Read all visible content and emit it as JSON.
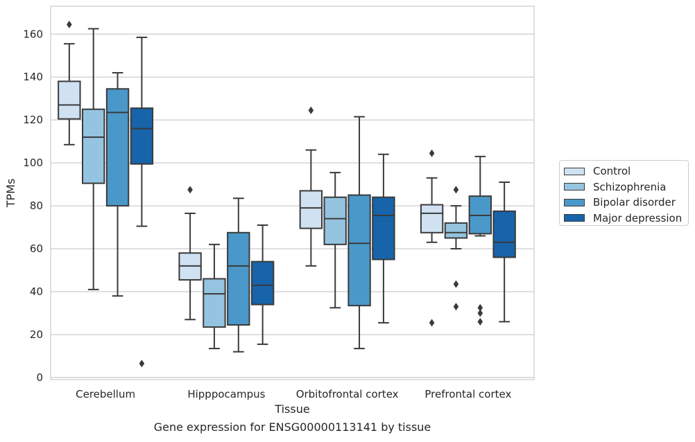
{
  "chart_data": {
    "type": "box",
    "title": "Gene expression for ENSG00000113141 by tissue",
    "xlabel": "Tissue",
    "ylabel": "TPMs",
    "ylim": [
      -1,
      173
    ],
    "yticks": [
      0,
      20,
      40,
      60,
      80,
      100,
      120,
      140,
      160
    ],
    "grid": "horizontal",
    "legend_position": "right",
    "categories": [
      "Cerebellum",
      "Hipppocampus",
      "Orbitofrontal cortex",
      "Prefrontal cortex"
    ],
    "series": [
      {
        "name": "Control",
        "color": "#d0e1f2",
        "boxes": [
          {
            "whisker_low": 108.5,
            "q1": 120.5,
            "median": 127,
            "q3": 138,
            "whisker_high": 155.5,
            "outliers": [
              164.5
            ]
          },
          {
            "whisker_low": 27,
            "q1": 45.5,
            "median": 52,
            "q3": 58,
            "whisker_high": 76.5,
            "outliers": [
              87.5
            ]
          },
          {
            "whisker_low": 52,
            "q1": 69.5,
            "median": 79,
            "q3": 87,
            "whisker_high": 106,
            "outliers": [
              124.5
            ]
          },
          {
            "whisker_low": 63,
            "q1": 67.5,
            "median": 76.5,
            "q3": 80.5,
            "whisker_high": 93,
            "outliers": [
              104.5,
              25.5
            ]
          }
        ]
      },
      {
        "name": "Schizophrenia",
        "color": "#94c4df",
        "boxes": [
          {
            "whisker_low": 41,
            "q1": 90.5,
            "median": 112,
            "q3": 125,
            "whisker_high": 162.5,
            "outliers": []
          },
          {
            "whisker_low": 13.5,
            "q1": 23.5,
            "median": 39,
            "q3": 46,
            "whisker_high": 62,
            "outliers": []
          },
          {
            "whisker_low": 32.5,
            "q1": 62,
            "median": 74,
            "q3": 84,
            "whisker_high": 95.5,
            "outliers": []
          },
          {
            "whisker_low": 60,
            "q1": 65,
            "median": 67.5,
            "q3": 72,
            "whisker_high": 80,
            "outliers": [
              87.5,
              43.5,
              33
            ]
          }
        ]
      },
      {
        "name": "Bipolar disorder",
        "color": "#4a98c9",
        "boxes": [
          {
            "whisker_low": 38,
            "q1": 80,
            "median": 123.5,
            "q3": 134.5,
            "whisker_high": 142,
            "outliers": []
          },
          {
            "whisker_low": 12,
            "q1": 24.5,
            "median": 52,
            "q3": 67.5,
            "whisker_high": 83.5,
            "outliers": []
          },
          {
            "whisker_low": 13.5,
            "q1": 33.5,
            "median": 62.5,
            "q3": 85,
            "whisker_high": 121.5,
            "outliers": []
          },
          {
            "whisker_low": 66,
            "q1": 67,
            "median": 75.5,
            "q3": 84.5,
            "whisker_high": 103,
            "outliers": [
              32.5,
              30,
              26
            ]
          }
        ]
      },
      {
        "name": "Major depression",
        "color": "#1764ab",
        "boxes": [
          {
            "whisker_low": 70.5,
            "q1": 99.5,
            "median": 116,
            "q3": 125.5,
            "whisker_high": 158.5,
            "outliers": [
              6.5
            ]
          },
          {
            "whisker_low": 15.5,
            "q1": 34,
            "median": 43,
            "q3": 54,
            "whisker_high": 71,
            "outliers": []
          },
          {
            "whisker_low": 25.5,
            "q1": 55,
            "median": 75.5,
            "q3": 84,
            "whisker_high": 104,
            "outliers": []
          },
          {
            "whisker_low": 26,
            "q1": 56,
            "median": 63,
            "q3": 77.5,
            "whisker_high": 91,
            "outliers": []
          }
        ]
      }
    ]
  }
}
